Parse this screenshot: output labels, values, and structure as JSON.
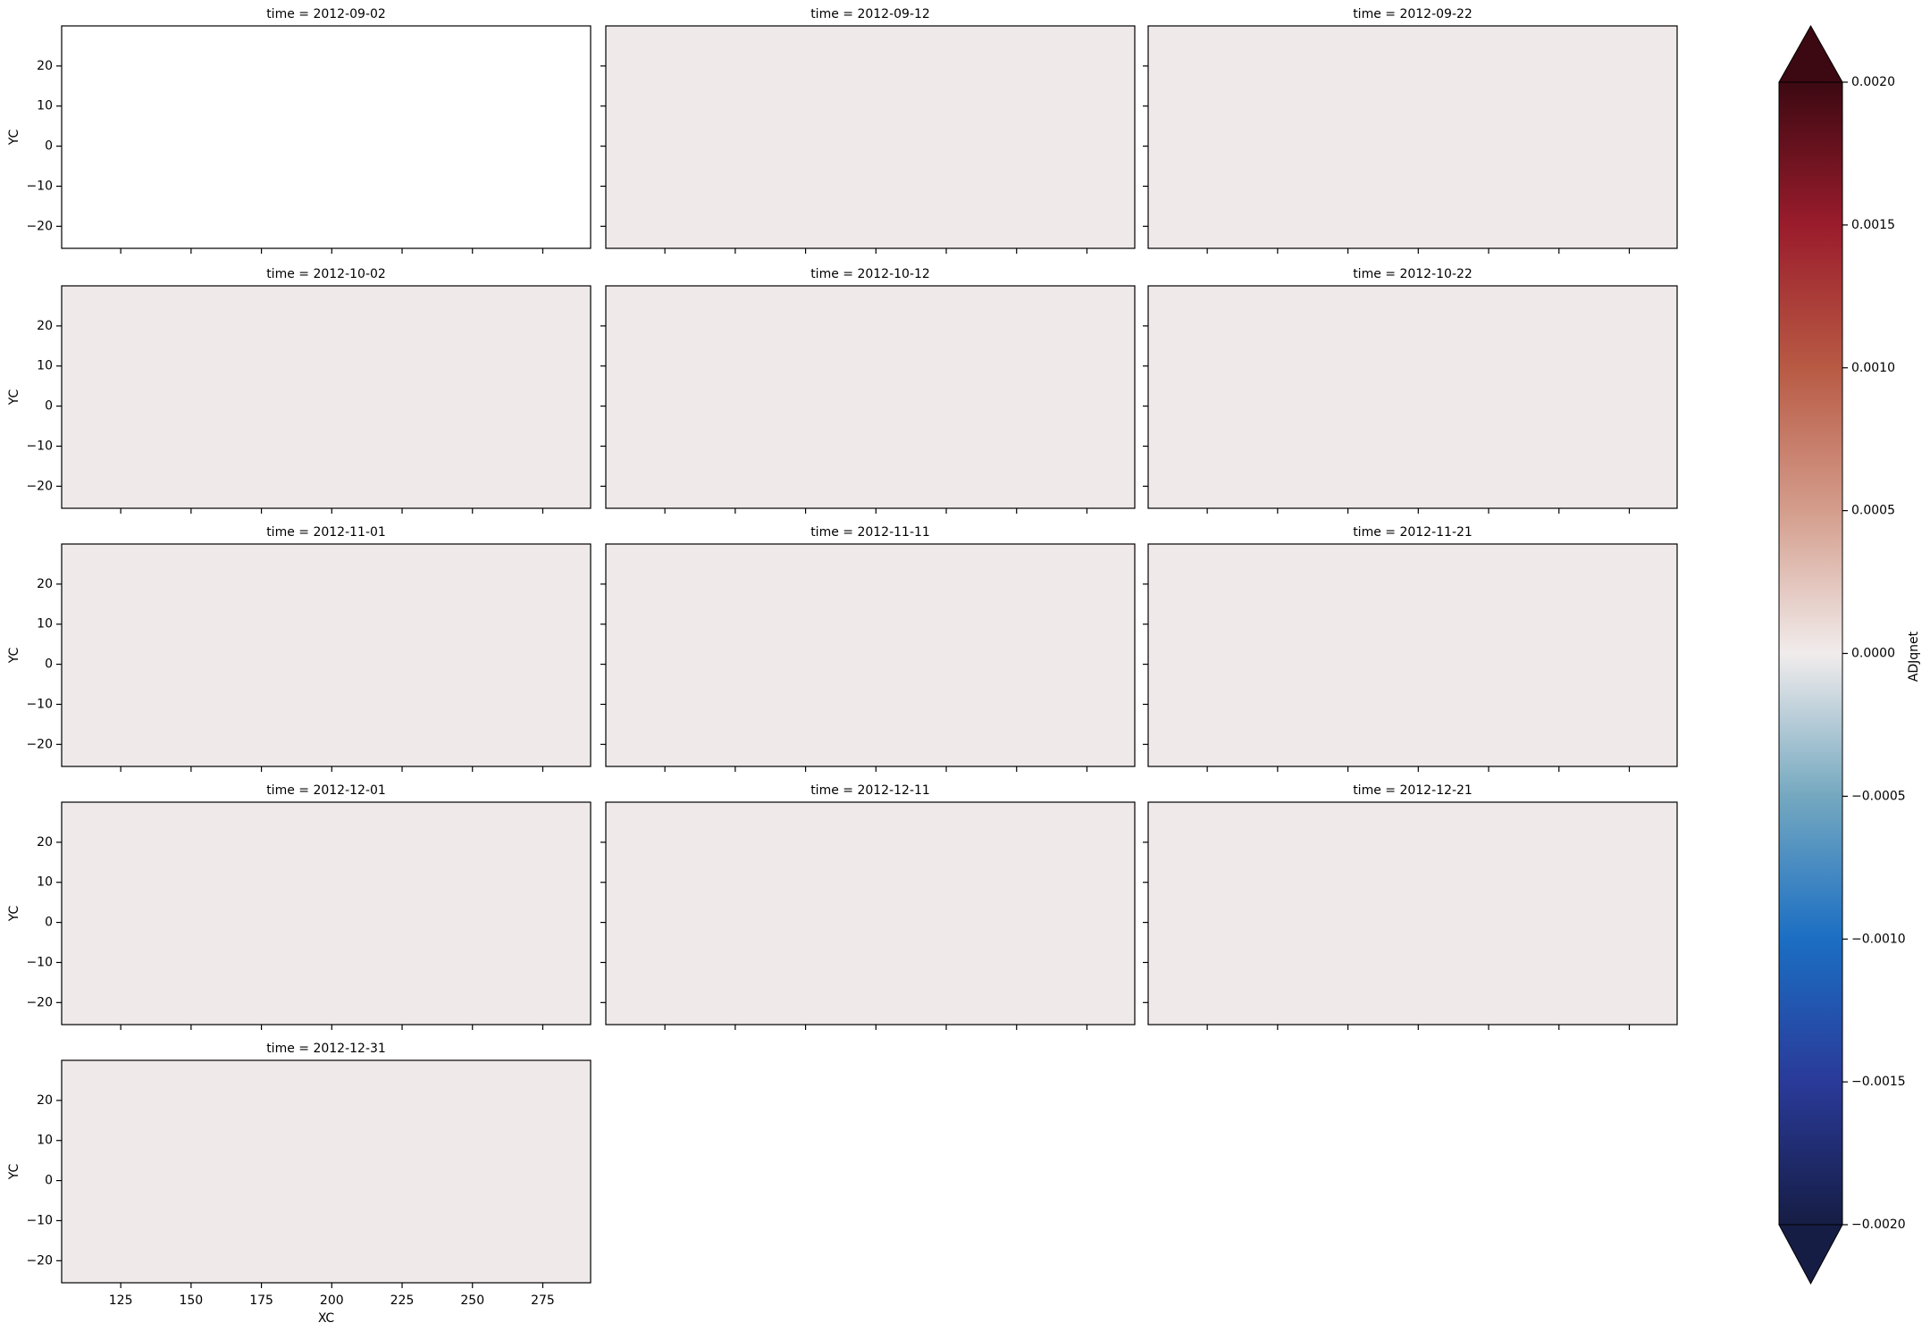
{
  "chart_data": {
    "type": "heatmap",
    "xlabel": "XC",
    "ylabel": "YC",
    "xlim": [
      104,
      292
    ],
    "ylim": [
      -25.5,
      30
    ],
    "xticks": [
      125,
      150,
      175,
      200,
      225,
      250,
      275
    ],
    "yticks": [
      {
        "value": -20,
        "label": "−20"
      },
      {
        "value": -10,
        "label": "−10"
      },
      0,
      10,
      20
    ],
    "panels": [
      {
        "title": "time = 2012-09-02",
        "background": "#ffffff"
      },
      {
        "title": "time = 2012-09-12",
        "background": "#efe9e9"
      },
      {
        "title": "time = 2012-09-22",
        "background": "#efe9e9"
      },
      {
        "title": "time = 2012-10-02",
        "background": "#efe9e9"
      },
      {
        "title": "time = 2012-10-12",
        "background": "#efe9e9"
      },
      {
        "title": "time = 2012-10-22",
        "background": "#efe9e9"
      },
      {
        "title": "time = 2012-11-01",
        "background": "#efe9e9"
      },
      {
        "title": "time = 2012-11-11",
        "background": "#efe9e9"
      },
      {
        "title": "time = 2012-11-21",
        "background": "#efe9e9"
      },
      {
        "title": "time = 2012-12-01",
        "background": "#efe9e9"
      },
      {
        "title": "time = 2012-12-11",
        "background": "#efe9e9"
      },
      {
        "title": "time = 2012-12-21",
        "background": "#efe9e9"
      },
      {
        "title": "time = 2012-12-31",
        "background": "#efe9e9"
      }
    ],
    "colorbar": {
      "label": "ADJqnet",
      "lim": [
        -0.002,
        0.002
      ],
      "extend": "both",
      "colors": [
        "#161d44",
        "#2a3a99",
        "#1b6ec3",
        "#74a8c0",
        "#f1ecec",
        "#d49d8c",
        "#b85a44",
        "#9a1c2c",
        "#3c0912"
      ],
      "ticks": [
        {
          "value": -0.002,
          "label": "−0.0020"
        },
        {
          "value": -0.0015,
          "label": "−0.0015"
        },
        {
          "value": -0.001,
          "label": "−0.0010"
        },
        {
          "value": -0.0005,
          "label": "−0.0005"
        },
        {
          "value": 0,
          "label": "0.0000"
        },
        {
          "value": 0.0005,
          "label": "0.0005"
        },
        {
          "value": 0.001,
          "label": "0.0010"
        },
        {
          "value": 0.0015,
          "label": "0.0015"
        },
        {
          "value": 0.002,
          "label": "0.0020"
        }
      ]
    }
  }
}
